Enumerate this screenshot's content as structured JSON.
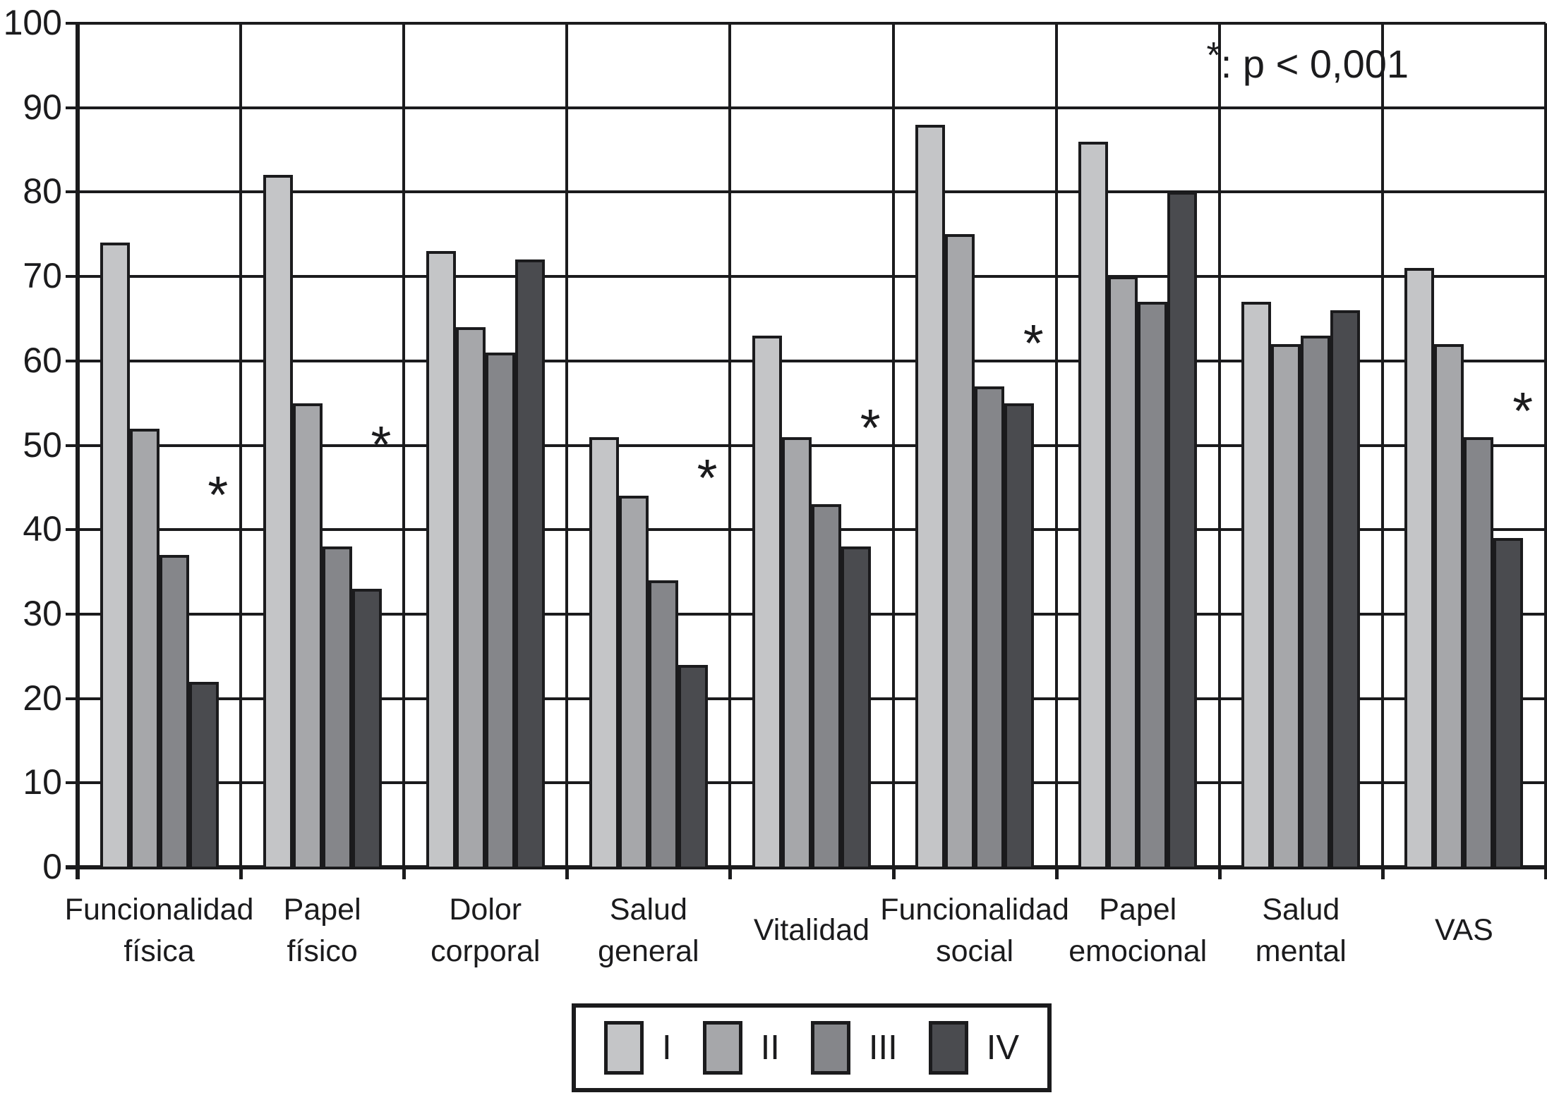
{
  "figure": {
    "background": "#ffffff",
    "ink_color": "#1b1b1d"
  },
  "annotation": {
    "star": "*",
    "text": ": p < 0,001"
  },
  "legend": {
    "position": "bottom-center",
    "items": [
      {
        "label": "I",
        "color": "#c4c5c7"
      },
      {
        "label": "II",
        "color": "#a6a7aa"
      },
      {
        "label": "III",
        "color": "#85868a"
      },
      {
        "label": "IV",
        "color": "#4a4b4f"
      }
    ]
  },
  "chart_data": {
    "type": "bar",
    "title": "",
    "xlabel": "",
    "ylabel": "",
    "ylim": [
      0,
      100
    ],
    "ytick_step": 10,
    "yticks": [
      0,
      10,
      20,
      30,
      40,
      50,
      60,
      70,
      80,
      90,
      100
    ],
    "grid": "horizontal gridlines + vertical category separators",
    "legend_position": "bottom",
    "categories": [
      "Funcionalidad física",
      "Papel físico",
      "Dolor corporal",
      "Salud general",
      "Vitalidad",
      "Funcionalidad social",
      "Papel emocional",
      "Salud mental",
      "VAS"
    ],
    "category_label_lines": [
      [
        "Funcionalidad",
        "física"
      ],
      [
        "Papel",
        "físico"
      ],
      [
        "Dolor",
        "corporal"
      ],
      [
        "Salud",
        "general"
      ],
      [
        "Vitalidad"
      ],
      [
        "Funcionalidad",
        "social"
      ],
      [
        "Papel",
        "emocional"
      ],
      [
        "Salud",
        "mental"
      ],
      [
        "VAS"
      ]
    ],
    "series": [
      {
        "name": "I",
        "color": "#c4c5c7",
        "values": [
          74,
          82,
          73,
          51,
          63,
          88,
          86,
          67,
          71
        ]
      },
      {
        "name": "II",
        "color": "#a6a7aa",
        "values": [
          52,
          55,
          64,
          44,
          51,
          75,
          70,
          62,
          62
        ]
      },
      {
        "name": "III",
        "color": "#85868a",
        "values": [
          37,
          38,
          61,
          34,
          43,
          57,
          67,
          63,
          51
        ]
      },
      {
        "name": "IV",
        "color": "#4a4b4f",
        "values": [
          22,
          33,
          72,
          24,
          38,
          55,
          80,
          66,
          39
        ]
      }
    ],
    "significance": {
      "symbol": "*",
      "note": "*: p < 0,001",
      "marker_y_per_category": [
        45,
        51,
        null,
        47,
        53,
        63,
        null,
        null,
        55
      ],
      "marked_categories": [
        "Funcionalidad física",
        "Papel físico",
        "Salud general",
        "Vitalidad",
        "Funcionalidad social",
        "VAS"
      ]
    }
  }
}
